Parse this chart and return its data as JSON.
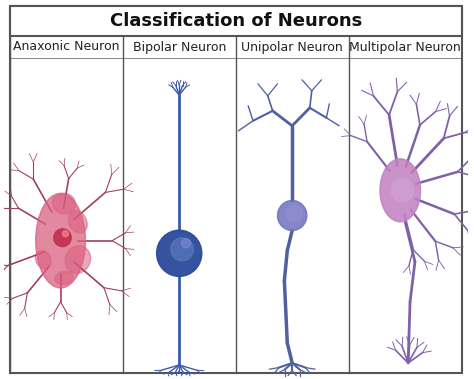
{
  "title": "Classification of Neurons",
  "columns": [
    "Anaxonic Neuron",
    "Bipolar Neuron",
    "Unipolar Neuron",
    "Multipolar Neuron"
  ],
  "background_color": "#ffffff",
  "border_color": "#555555",
  "title_fontsize": 13,
  "col_fontsize": 9,
  "figsize": [
    4.74,
    3.79
  ],
  "dpi": 100,
  "colors": {
    "anaxonic_body": "#d96080",
    "anaxonic_process": "#a04060",
    "anaxonic_nucleus": "#c03050",
    "bipolar_body": "#2a4a9a",
    "bipolar_process": "#3a5aaa",
    "bipolar_nucleus": "#6080c0",
    "unipolar_body": "#7070c0",
    "unipolar_process": "#5060a0",
    "unipolar_nucleus": "#9090d0",
    "multipolar_body": "#c080c0",
    "multipolar_process": "#8060a8",
    "multipolar_nucleus": "#d0a0d8"
  }
}
